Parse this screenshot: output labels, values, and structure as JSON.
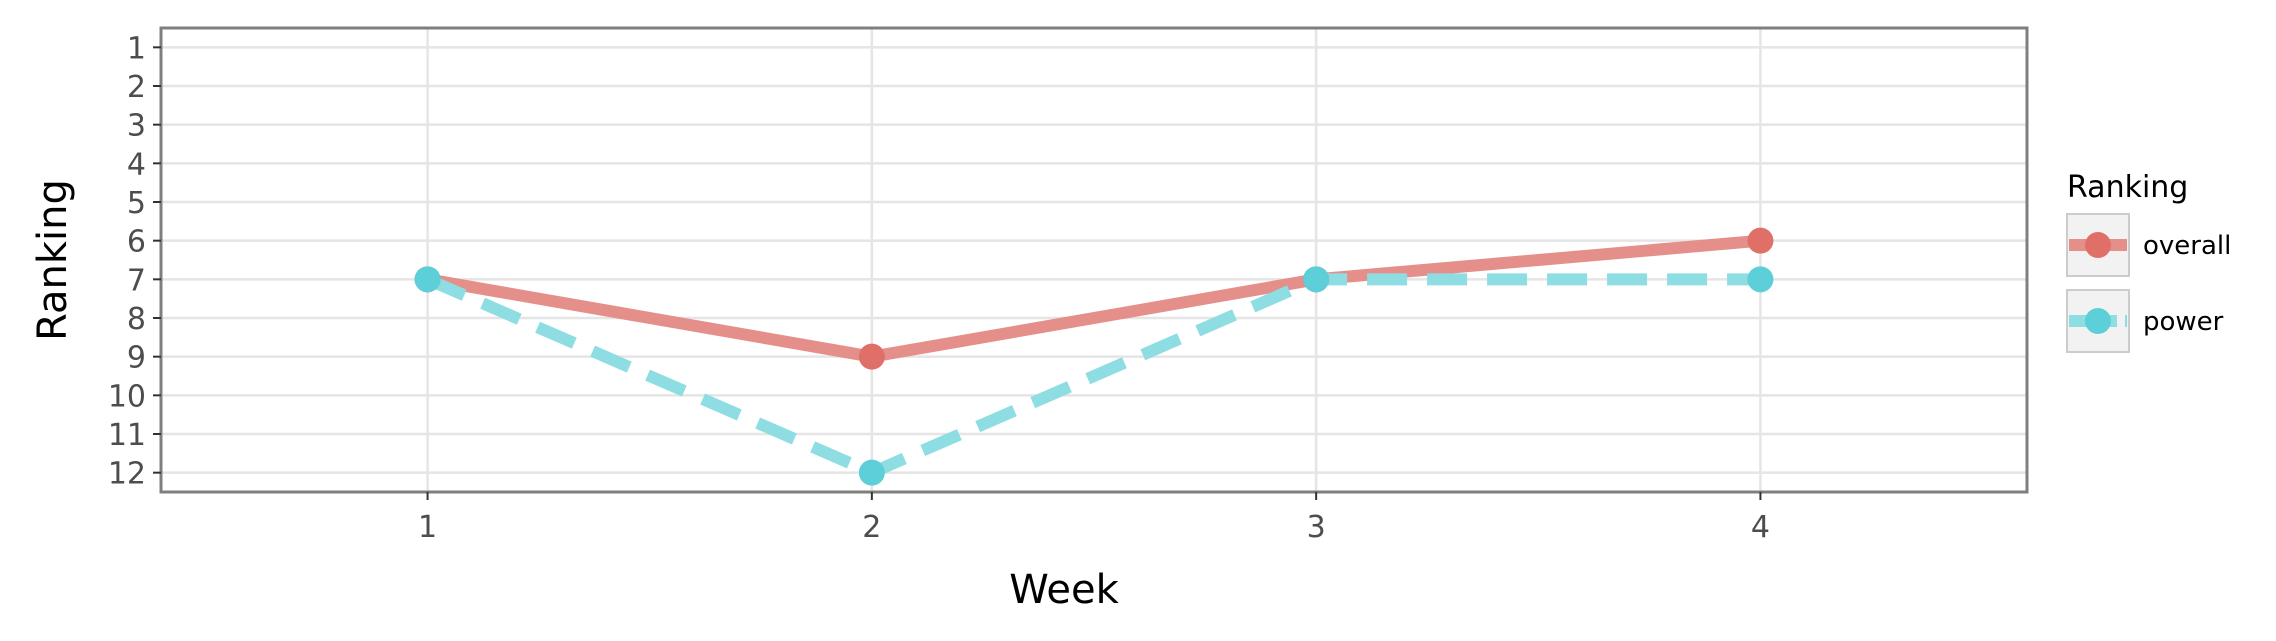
{
  "chart_data": {
    "type": "line",
    "x": [
      1,
      2,
      3,
      4
    ],
    "xticks": [
      "1",
      "2",
      "3",
      "4"
    ],
    "xlim": [
      0.4,
      4.6
    ],
    "yticks": [
      "1",
      "2",
      "3",
      "4",
      "5",
      "6",
      "7",
      "8",
      "9",
      "10",
      "11",
      "12"
    ],
    "ylim": [
      12.5,
      0.5
    ],
    "y_reversed": true,
    "xlabel": "Week",
    "ylabel": "Ranking",
    "grid": true,
    "legend": {
      "title": "Ranking",
      "position": "right"
    },
    "series": [
      {
        "name": "overall",
        "values": [
          7,
          9,
          7,
          6
        ],
        "color": "#E06F68",
        "line_color": "#E58F8A",
        "line_style": "solid"
      },
      {
        "name": "power",
        "values": [
          7,
          12,
          7,
          7
        ],
        "color": "#5CCFD9",
        "line_color": "#8DDDE2",
        "line_style": "dashed"
      }
    ]
  }
}
